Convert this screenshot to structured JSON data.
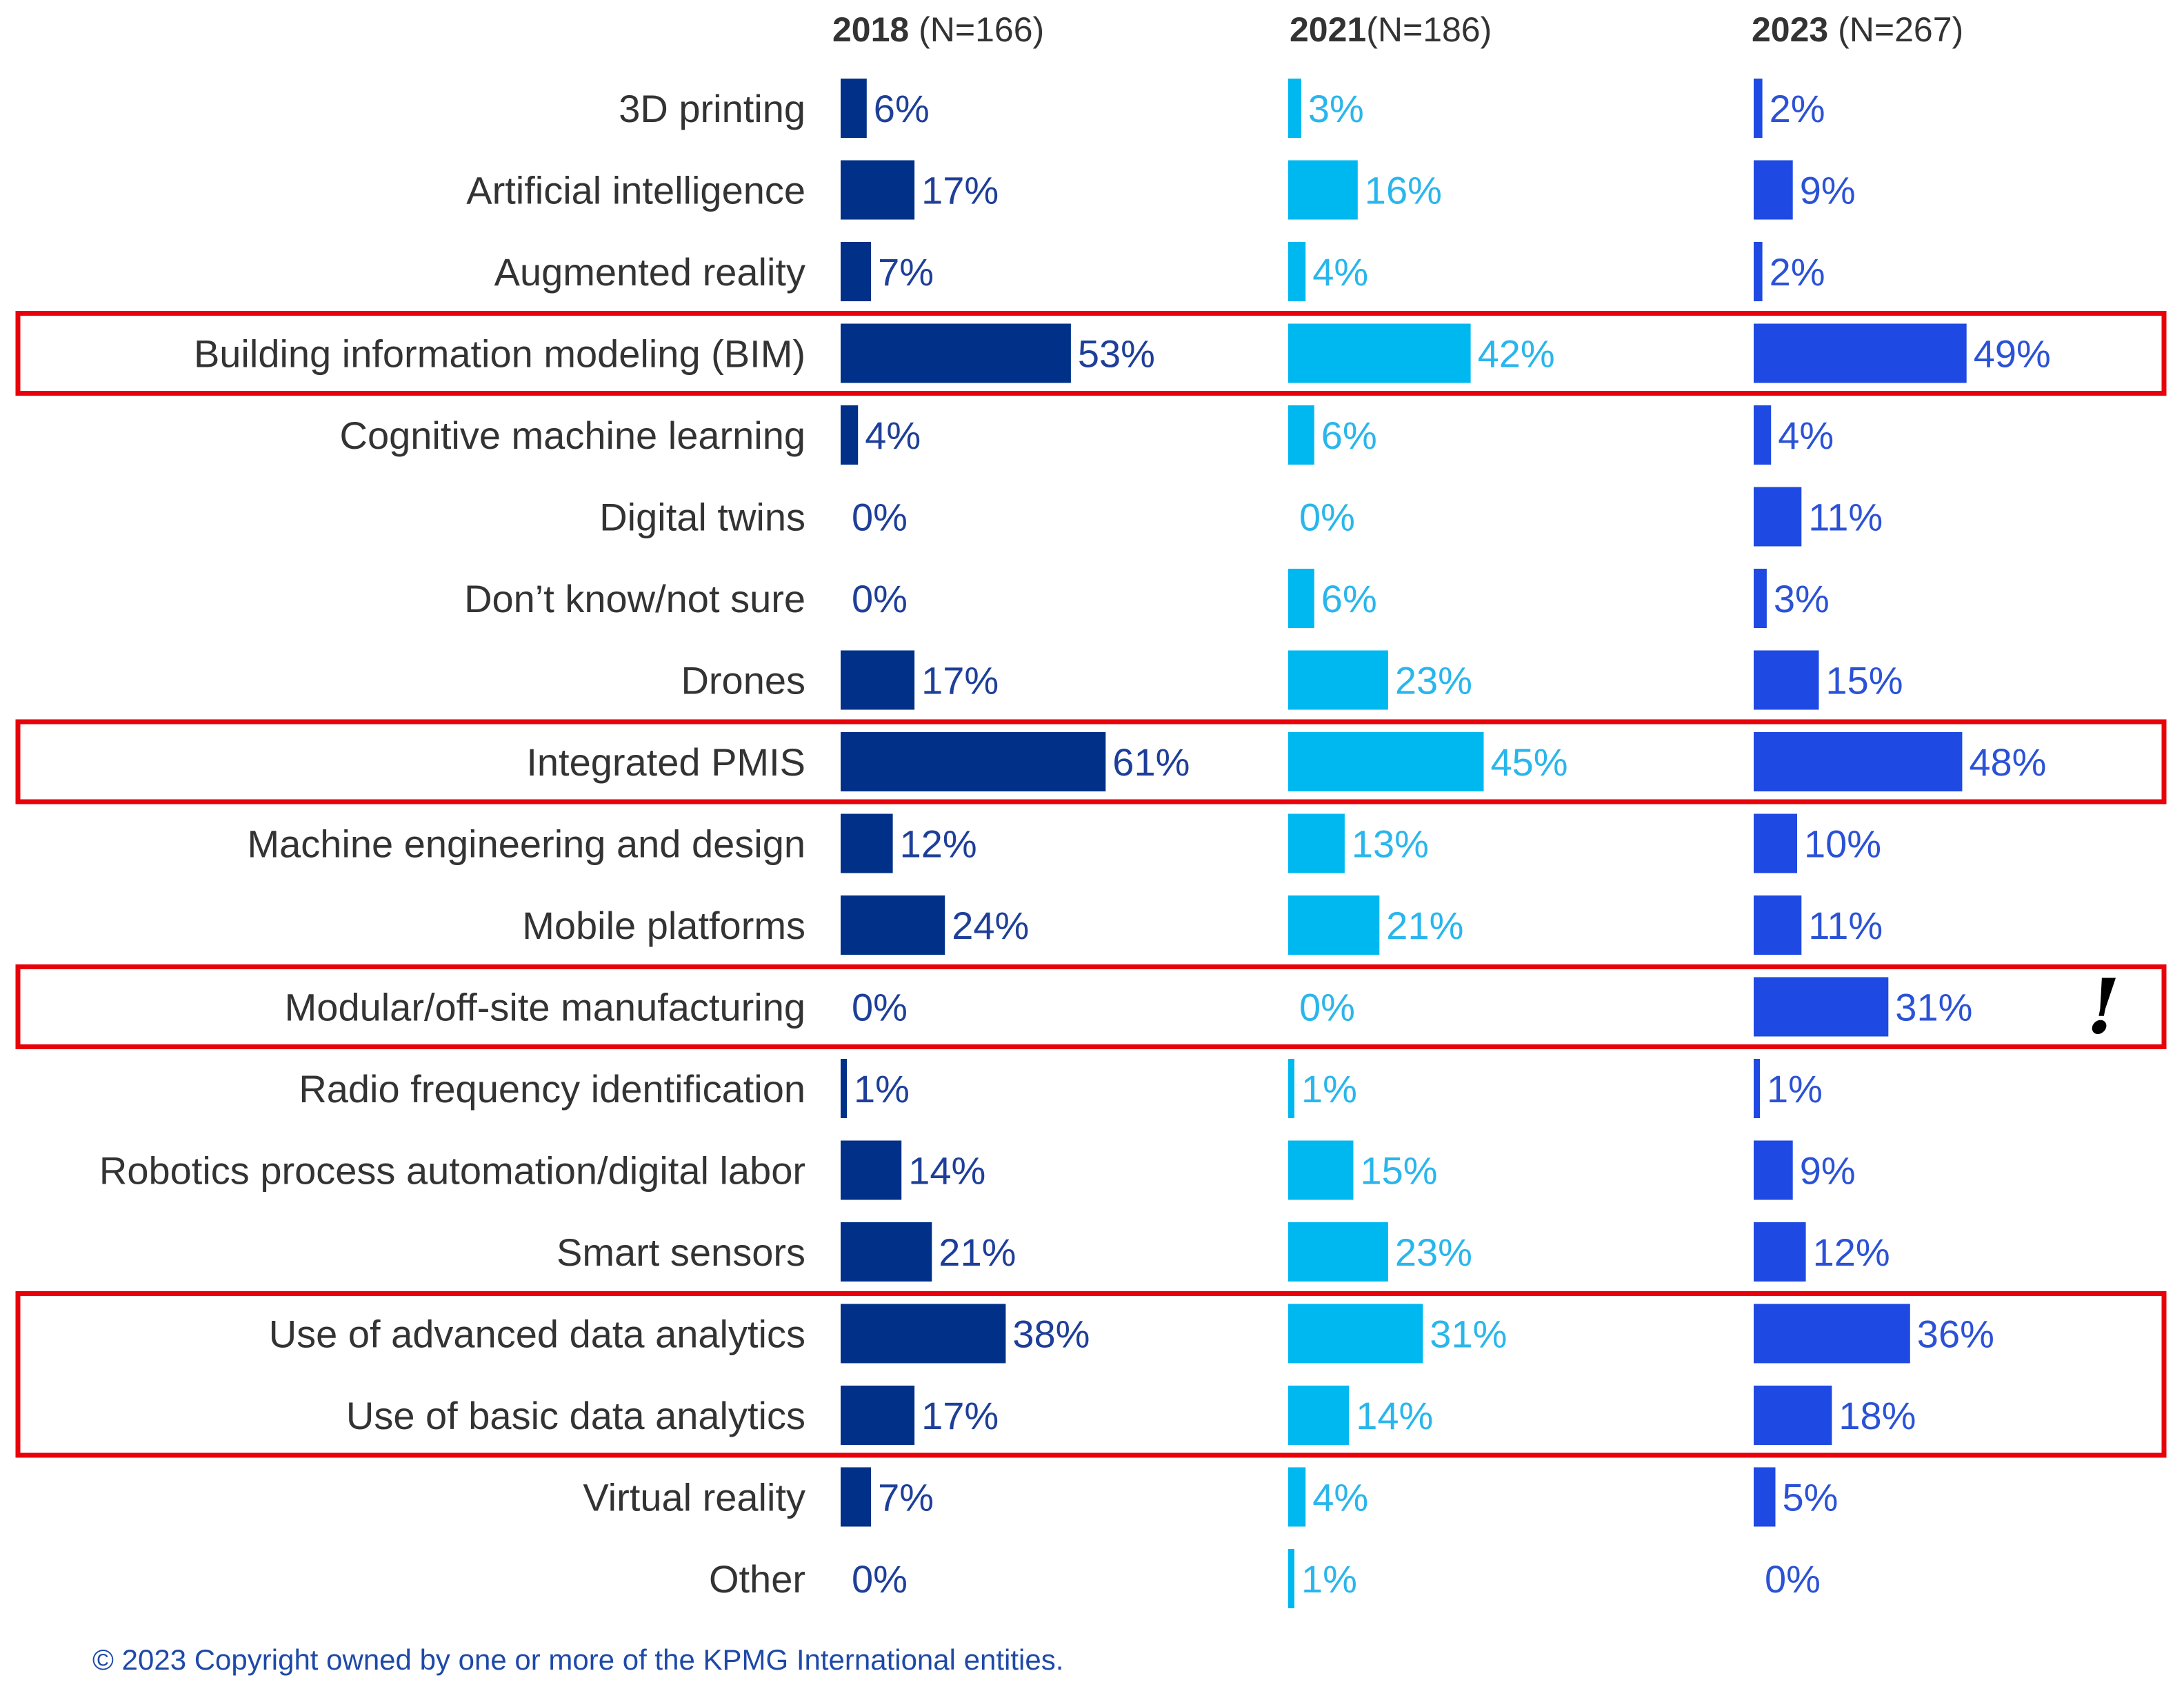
{
  "chart_data": {
    "type": "bar",
    "orientation": "horizontal",
    "categories": [
      "3D printing",
      "Artificial intelligence",
      "Augmented reality",
      "Building information modeling (BIM)",
      "Cognitive machine learning",
      "Digital twins",
      "Don’t know/not sure",
      "Drones",
      "Integrated PMIS",
      "Machine engineering and design",
      "Mobile platforms",
      "Modular/off-site manufacturing",
      "Radio frequency identification",
      "Robotics process automation/digital labor",
      "Smart sensors",
      "Use of advanced data analytics",
      "Use of basic data analytics",
      "Virtual reality",
      "Other"
    ],
    "series": [
      {
        "name": "2018",
        "year": "2018",
        "n": "(N=166)",
        "color": "#003087",
        "label_color": "#1e3f99",
        "values": [
          6,
          17,
          7,
          53,
          4,
          0,
          0,
          17,
          61,
          12,
          24,
          0,
          1,
          14,
          21,
          38,
          17,
          7,
          0
        ],
        "labels": [
          "6%",
          "17%",
          "7%",
          "53%",
          "4%",
          "0%",
          "0%",
          "17%",
          "61%",
          "12%",
          "24%",
          "0%",
          "1%",
          "14%",
          "21%",
          "38%",
          "17%",
          "7%",
          "0%"
        ]
      },
      {
        "name": "2021",
        "year": "2021",
        "n": "(N=186)",
        "color": "#00b8f0",
        "label_color": "#29b6ec",
        "values": [
          3,
          16,
          4,
          42,
          6,
          0,
          6,
          23,
          45,
          13,
          21,
          0,
          1,
          15,
          23,
          31,
          14,
          4,
          1
        ],
        "labels": [
          "3%",
          "16%",
          "4%",
          "42%",
          "6%",
          "0%",
          "6%",
          "23%",
          "45%",
          "13%",
          "21%",
          "0%",
          "1%",
          "15%",
          "23%",
          "31%",
          "14%",
          "4%",
          "1%"
        ]
      },
      {
        "name": "2023",
        "year": "2023",
        "n": "(N=267)",
        "color": "#1e49e2",
        "label_color": "#2b52d6",
        "values": [
          2,
          9,
          2,
          49,
          4,
          11,
          3,
          15,
          48,
          10,
          11,
          31,
          1,
          9,
          12,
          36,
          18,
          5,
          0
        ],
        "labels": [
          "2%",
          "9%",
          "2%",
          "49%",
          "4%",
          "11%",
          "3%",
          "15%",
          "48%",
          "10%",
          "11%",
          "31%",
          "1%",
          "9%",
          "12%",
          "36%",
          "18%",
          "5%",
          "0%"
        ]
      }
    ],
    "highlighted_rows": [
      [
        3
      ],
      [
        8
      ],
      [
        11
      ],
      [
        15,
        16
      ]
    ],
    "highlight_color": "#e8000b",
    "annotation": {
      "text": "!",
      "row": 11
    },
    "xlim": [
      0,
      100
    ]
  },
  "footer": "© 2023 Copyright owned by one or more of the KPMG International entities."
}
